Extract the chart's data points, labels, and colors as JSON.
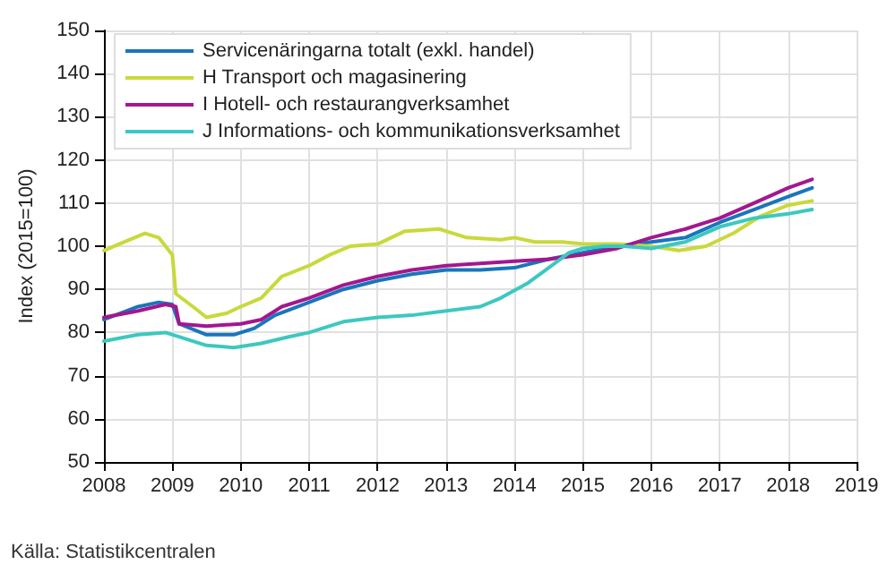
{
  "chart_data": {
    "type": "line",
    "ylabel": "Index (2015=100)",
    "annotations": [
      "Källa: Statistikcentralen"
    ],
    "xlim": [
      2008,
      2019
    ],
    "xticks": [
      2008,
      2009,
      2010,
      2011,
      2012,
      2013,
      2014,
      2015,
      2016,
      2017,
      2018,
      2019
    ],
    "ylim": [
      50,
      150
    ],
    "yticks": [
      50,
      60,
      70,
      80,
      90,
      100,
      110,
      120,
      130,
      140,
      150
    ],
    "grid": true,
    "legend": "top left",
    "marker": "none",
    "line_style": "solid",
    "series": [
      {
        "name": "Servicenäringarna totalt (exkl. handel)",
        "color": "#1a75bb",
        "x": [
          2008.0,
          2008.5,
          2008.8,
          2009.0,
          2009.1,
          2009.5,
          2009.9,
          2010.2,
          2010.5,
          2011.0,
          2011.5,
          2012.0,
          2012.5,
          2013.0,
          2013.5,
          2014.0,
          2014.5,
          2015.0,
          2015.5,
          2016.0,
          2016.5,
          2017.0,
          2017.5,
          2018.0,
          2018.35
        ],
        "values": [
          83,
          86,
          87,
          86.5,
          82,
          79.5,
          79.5,
          81,
          84,
          87,
          90,
          92,
          93.5,
          94.5,
          94.5,
          95,
          97,
          98.5,
          100,
          101,
          102,
          105.5,
          108.5,
          111.5,
          113.5
        ]
      },
      {
        "name": "H Transport och magasinering",
        "color": "#c8d93a",
        "x": [
          2008.0,
          2008.3,
          2008.6,
          2008.8,
          2009.0,
          2009.05,
          2009.3,
          2009.5,
          2009.8,
          2010.0,
          2010.3,
          2010.6,
          2011.0,
          2011.3,
          2011.6,
          2012.0,
          2012.4,
          2012.9,
          2013.3,
          2013.8,
          2014.0,
          2014.3,
          2014.7,
          2015.0,
          2015.5,
          2016.0,
          2016.4,
          2016.8,
          2017.2,
          2017.6,
          2018.0,
          2018.35
        ],
        "values": [
          99,
          101,
          103,
          102,
          98,
          89,
          86,
          83.5,
          84.5,
          86,
          88,
          93,
          95.5,
          98,
          100,
          100.5,
          103.5,
          104,
          102,
          101.5,
          102,
          101,
          101,
          100.5,
          100.5,
          100,
          99,
          100,
          103,
          107,
          109.5,
          110.5
        ]
      },
      {
        "name": "I Hotell- och restaurangverksamhet",
        "color": "#a3178f",
        "x": [
          2008.0,
          2008.5,
          2008.9,
          2009.05,
          2009.1,
          2009.5,
          2010.0,
          2010.3,
          2010.6,
          2011.0,
          2011.5,
          2012.0,
          2012.5,
          2013.0,
          2013.5,
          2014.0,
          2014.5,
          2015.0,
          2015.5,
          2016.0,
          2016.5,
          2017.0,
          2017.5,
          2018.0,
          2018.35
        ],
        "values": [
          83.5,
          85,
          86.5,
          86,
          82,
          81.5,
          82,
          83,
          86,
          88,
          91,
          93,
          94.5,
          95.5,
          96,
          96.5,
          97,
          98,
          99.5,
          102,
          104,
          106.5,
          110,
          113.5,
          115.5
        ]
      },
      {
        "name": "J Informations- och kommunikationsverksamhet",
        "color": "#3cc8c0",
        "x": [
          2008.0,
          2008.5,
          2008.9,
          2009.2,
          2009.5,
          2009.9,
          2010.3,
          2010.7,
          2011.0,
          2011.5,
          2012.0,
          2012.5,
          2013.0,
          2013.5,
          2013.8,
          2014.2,
          2014.5,
          2014.8,
          2015.0,
          2015.3,
          2015.6,
          2016.0,
          2016.5,
          2017.0,
          2017.5,
          2018.0,
          2018.35
        ],
        "values": [
          78,
          79.5,
          80,
          78.5,
          77,
          76.5,
          77.5,
          79,
          80,
          82.5,
          83.5,
          84,
          85,
          86,
          88,
          91.5,
          95,
          98.5,
          99.5,
          100,
          100,
          99.5,
          101,
          104.5,
          106.5,
          107.5,
          108.5
        ]
      }
    ]
  }
}
